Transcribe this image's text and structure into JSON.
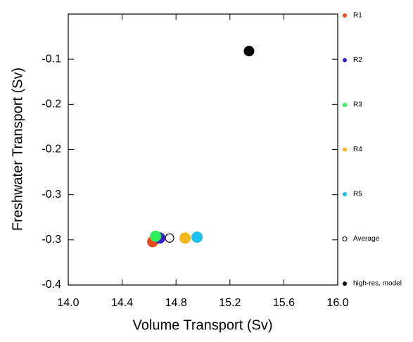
{
  "chart_data": {
    "type": "scatter",
    "x_label": "Volume Transport (Sv)",
    "y_label": "Freshwater Transport (Sv)",
    "xlim": [
      14.0,
      16.0
    ],
    "xticks": [
      {
        "value": 14,
        "label": "14.0"
      },
      14.4,
      14.8,
      15.2,
      15.6,
      {
        "value": 16,
        "label": "16.0"
      }
    ],
    "ylim": [
      -0.4,
      -0.1
    ],
    "yticks": [
      -0.4,
      {
        "value": -0.35,
        "label": "-0.3"
      },
      -0.3,
      {
        "value": -0.25,
        "label": "-0.2"
      },
      -0.2,
      {
        "value": -0.15,
        "label": "-0.1"
      }
    ],
    "series": [
      {
        "name": "R1",
        "color": "#f24a1e",
        "x": [
          14.627
        ],
        "values": [
          -0.352
        ]
      },
      {
        "name": "R2",
        "color": "#3a1fd1",
        "x": [
          14.679
        ],
        "values": [
          -0.348
        ]
      },
      {
        "name": "R3",
        "color": "#2ef05a",
        "x": [
          14.648
        ],
        "values": [
          -0.346
        ]
      },
      {
        "name": "R4",
        "color": "#f7b81c",
        "x": [
          14.867
        ],
        "values": [
          -0.348
        ]
      },
      {
        "name": "R5",
        "color": "#19c0ef",
        "x": [
          14.956
        ],
        "values": [
          -0.347
        ]
      },
      {
        "name": "Average",
        "color": "#000000",
        "marker": "open",
        "x": [
          14.752
        ],
        "values": [
          -0.348
        ]
      },
      {
        "name": "high-res. model",
        "color": "#000000",
        "x": [
          15.342
        ],
        "values": [
          -0.141
        ]
      }
    ]
  }
}
